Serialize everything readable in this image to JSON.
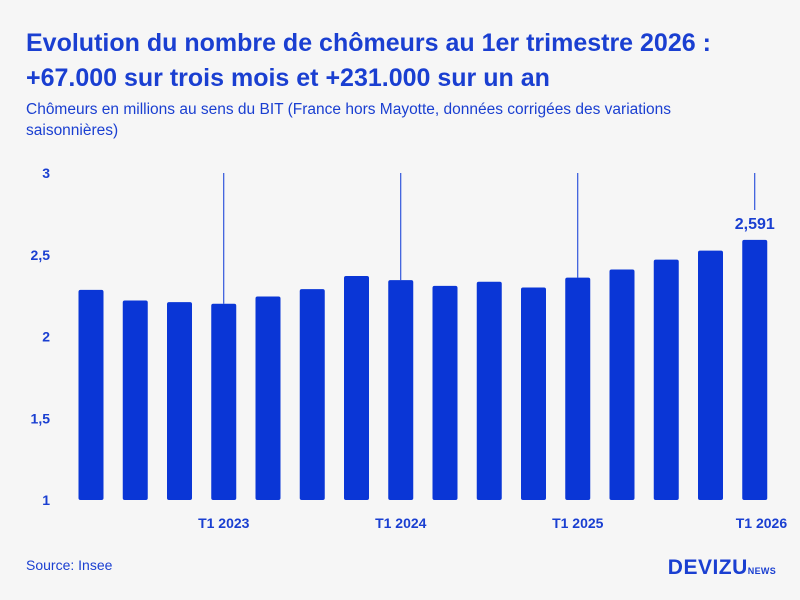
{
  "header": {
    "title": "Evolution du nombre de chômeurs au 1er trimestre 2026 : +67.000 sur trois mois et +231.000 sur un an",
    "subtitle": "Chômeurs en millions au sens du BIT (France hors Mayotte, données corrigées des variations saisonnières)"
  },
  "footer": {
    "source": "Source: Insee",
    "logo_main": "DEVIZU",
    "logo_sub": "NEWS"
  },
  "colors": {
    "bar": "#0a36d6",
    "text": "#1a3fd1"
  },
  "chart_data": {
    "type": "bar",
    "categories": [
      "",
      "",
      "",
      "T1 2023",
      "",
      "",
      "",
      "T1 2024",
      "",
      "",
      "",
      "T1 2025",
      "",
      "",
      "",
      "T1 2026"
    ],
    "values": [
      2.285,
      2.22,
      2.21,
      2.2,
      2.245,
      2.29,
      2.37,
      2.345,
      2.31,
      2.335,
      2.3,
      2.36,
      2.41,
      2.47,
      2.525,
      2.591
    ],
    "yticks": [
      "1",
      "1,5",
      "2",
      "2,5",
      "3"
    ],
    "ylim": [
      1,
      3
    ],
    "year_markers": [
      "T1 2023",
      "T1 2024",
      "T1 2025",
      "T1 2026"
    ],
    "data_labels": [
      {
        "category_index": 15,
        "text": "2,591"
      }
    ],
    "grid": false
  }
}
